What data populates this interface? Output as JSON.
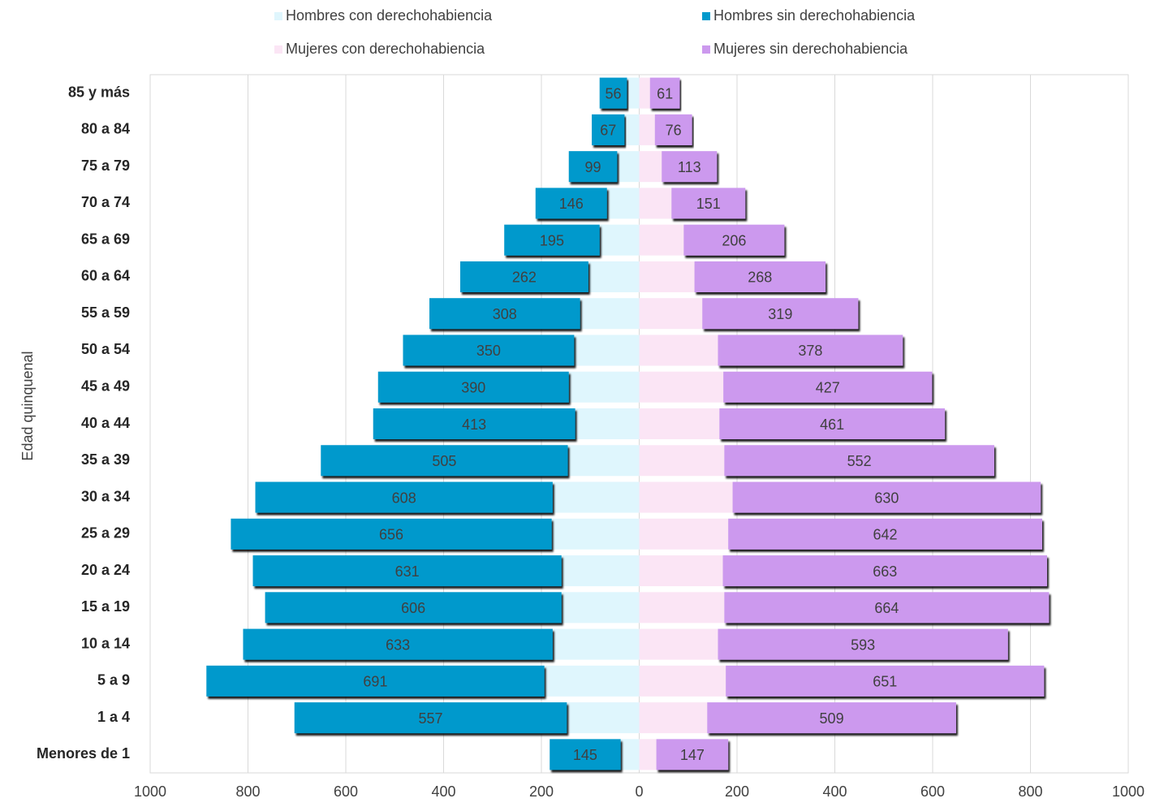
{
  "chart_data": {
    "type": "pyramid",
    "y_axis_label": "Edad quinquenal",
    "categories": [
      "Menores de 1",
      "1 a 4",
      "5 a 9",
      "10 a 14",
      "15 a 19",
      "20 a 24",
      "25 a 29",
      "30 a 34",
      "35 a 39",
      "40 a 44",
      "45 a 49",
      "50 a 54",
      "55 a 59",
      "60 a 64",
      "65 a 69",
      "70 a 74",
      "75 a 79",
      "80 a 84",
      "85 y más"
    ],
    "series": [
      {
        "name": "Hombres con derechohabiencia",
        "color": "#dff6fd",
        "side": "left",
        "labels": false,
        "values": [
          38,
          148,
          194,
          177,
          159,
          159,
          179,
          177,
          146,
          131,
          144,
          133,
          121,
          104,
          81,
          66,
          45,
          30,
          25
        ]
      },
      {
        "name": "Hombres sin derechohabiencia",
        "color": "#0099cc",
        "side": "left",
        "labels": true,
        "values": [
          145,
          557,
          691,
          633,
          606,
          631,
          656,
          608,
          505,
          413,
          390,
          350,
          308,
          262,
          195,
          146,
          99,
          67,
          56
        ]
      },
      {
        "name": "Mujeres con derechohabiencia",
        "color": "#fbe5f5",
        "side": "right",
        "labels": false,
        "values": [
          35,
          139,
          177,
          161,
          174,
          171,
          182,
          191,
          174,
          164,
          172,
          161,
          129,
          113,
          91,
          66,
          46,
          32,
          22
        ]
      },
      {
        "name": "Mujeres sin derechohabiencia",
        "color": "#cc99ee",
        "side": "right",
        "labels": true,
        "values": [
          147,
          509,
          651,
          593,
          664,
          663,
          642,
          630,
          552,
          461,
          427,
          378,
          319,
          268,
          206,
          151,
          113,
          76,
          61
        ]
      }
    ],
    "xlim": [
      -1000,
      1000
    ],
    "xticks": [
      {
        "value": -1000,
        "label": "1000"
      },
      {
        "value": -800,
        "label": "800"
      },
      {
        "value": -600,
        "label": "600"
      },
      {
        "value": -400,
        "label": "400"
      },
      {
        "value": -200,
        "label": "200"
      },
      0,
      200,
      400,
      600,
      800,
      1000
    ],
    "grid": true
  }
}
